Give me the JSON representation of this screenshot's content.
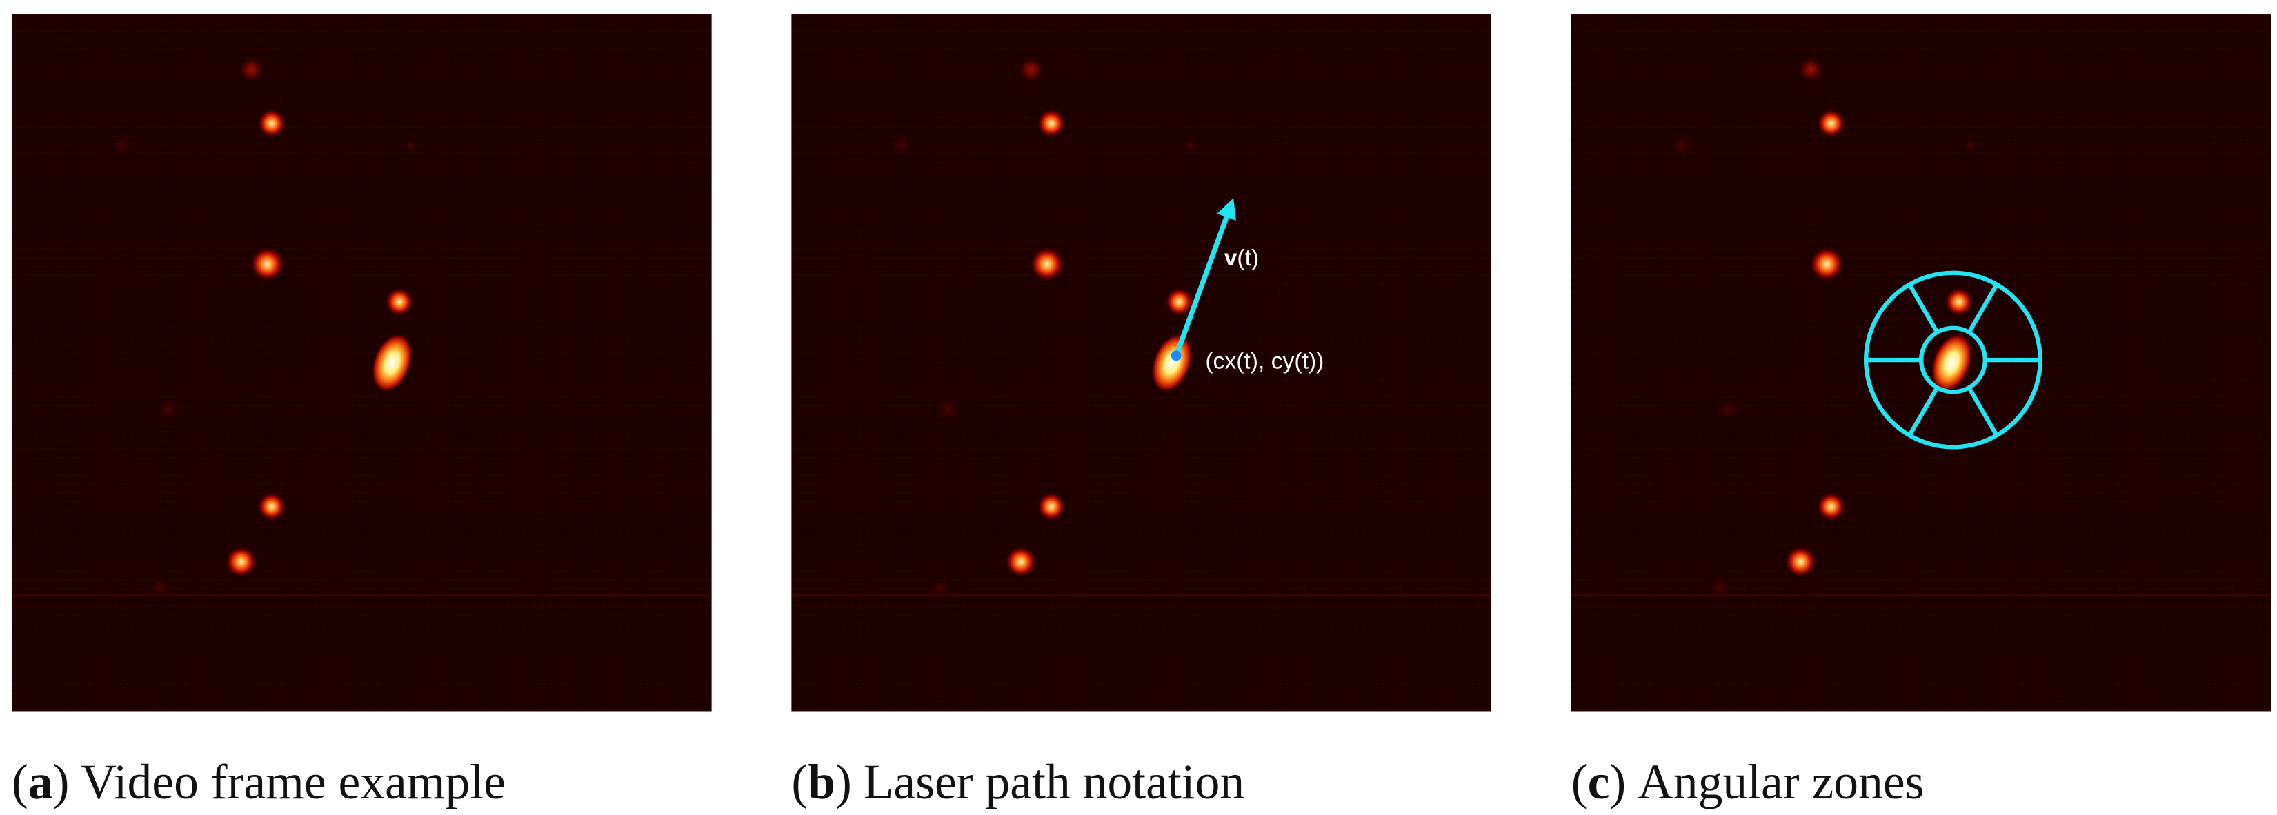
{
  "panels": [
    {
      "open": "(",
      "label": "a",
      "close": ")",
      "caption": "Video frame example"
    },
    {
      "open": "(",
      "label": "b",
      "close": ")",
      "caption": "Laser path notation"
    },
    {
      "open": "(",
      "label": "c",
      "close": ")",
      "caption": "Angular zones"
    }
  ],
  "annotations": {
    "velocity": {
      "symbol": "v",
      "argument": "(t)"
    },
    "position": "(cx(t), cy(t))"
  }
}
